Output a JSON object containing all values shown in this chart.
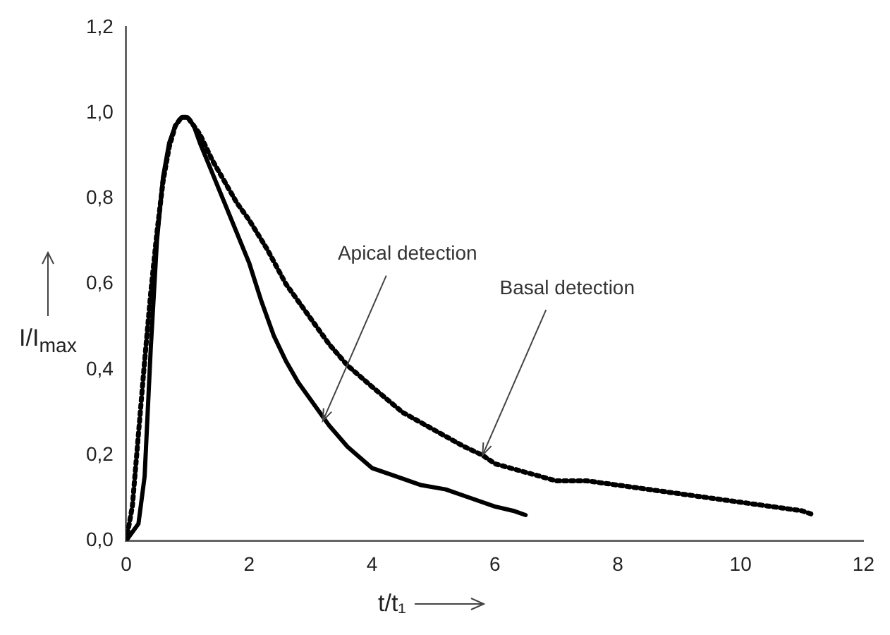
{
  "chart_data": {
    "type": "line",
    "xlabel": "t/t₁",
    "ylabel": "I/I$_{max}$",
    "xlim": [
      0,
      12
    ],
    "xticks": [
      0,
      2,
      4,
      6,
      8,
      10,
      12
    ],
    "ylim": [
      0,
      1.2
    ],
    "yticks": [
      {
        "value": 0,
        "label": "0,0"
      },
      {
        "value": 0.2,
        "label": "0,2"
      },
      {
        "value": 0.4,
        "label": "0,4"
      },
      {
        "value": 0.6,
        "label": "0,6"
      },
      {
        "value": 0.8,
        "label": "0,8"
      },
      {
        "value": 1,
        "label": "1,0"
      },
      {
        "value": 1.2,
        "label": "1,2"
      }
    ],
    "series": [
      {
        "color": "#000000",
        "line_style": "solid",
        "x": [
          0,
          0.1,
          0.2,
          0.3,
          0.4,
          0.5,
          0.6,
          0.7,
          0.8,
          0.9,
          1.0,
          1.1,
          1.2,
          1.4,
          1.6,
          1.8,
          2.0,
          2.2,
          2.4,
          2.6,
          2.8,
          3.0,
          3.3,
          3.6,
          4.0,
          4.4,
          4.8,
          5.2,
          5.6,
          6.0,
          6.3,
          6.5
        ],
        "values": [
          0,
          0.02,
          0.04,
          0.15,
          0.45,
          0.7,
          0.85,
          0.93,
          0.97,
          0.99,
          0.99,
          0.97,
          0.93,
          0.86,
          0.79,
          0.72,
          0.65,
          0.56,
          0.48,
          0.42,
          0.37,
          0.33,
          0.27,
          0.22,
          0.17,
          0.15,
          0.13,
          0.12,
          0.1,
          0.08,
          0.07,
          0.06
        ]
      },
      {
        "color": "#000000",
        "line_style": "dotted",
        "x": [
          0,
          0.1,
          0.2,
          0.3,
          0.4,
          0.5,
          0.6,
          0.7,
          0.8,
          0.9,
          1.0,
          1.2,
          1.4,
          1.6,
          1.8,
          2.0,
          2.3,
          2.6,
          3.0,
          3.3,
          3.6,
          4.0,
          4.5,
          5.0,
          5.5,
          5.8,
          6.0,
          6.5,
          7.0,
          7.5,
          8.0,
          8.5,
          9.0,
          9.5,
          10.0,
          10.5,
          11.0,
          11.2
        ],
        "values": [
          0,
          0.08,
          0.25,
          0.42,
          0.58,
          0.72,
          0.84,
          0.92,
          0.97,
          0.99,
          0.99,
          0.95,
          0.89,
          0.84,
          0.79,
          0.75,
          0.68,
          0.6,
          0.52,
          0.46,
          0.41,
          0.36,
          0.3,
          0.26,
          0.22,
          0.2,
          0.18,
          0.16,
          0.14,
          0.14,
          0.13,
          0.12,
          0.11,
          0.1,
          0.09,
          0.08,
          0.07,
          0.06
        ]
      }
    ],
    "annotations": [
      {
        "text": "Apical detection",
        "x": 3.2,
        "y": 0.28
      },
      {
        "text": "Basal detection",
        "x": 5.8,
        "y": 0.2
      }
    ]
  }
}
